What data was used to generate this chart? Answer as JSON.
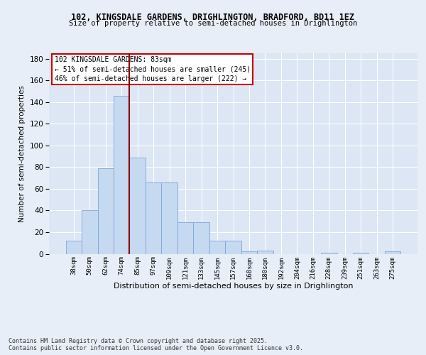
{
  "title1": "102, KINGSDALE GARDENS, DRIGHLINGTON, BRADFORD, BD11 1EZ",
  "title2": "Size of property relative to semi-detached houses in Drighlington",
  "xlabel": "Distribution of semi-detached houses by size in Drighlington",
  "ylabel": "Number of semi-detached properties",
  "categories": [
    "38sqm",
    "50sqm",
    "62sqm",
    "74sqm",
    "85sqm",
    "97sqm",
    "109sqm",
    "121sqm",
    "133sqm",
    "145sqm",
    "157sqm",
    "168sqm",
    "180sqm",
    "192sqm",
    "204sqm",
    "216sqm",
    "228sqm",
    "239sqm",
    "251sqm",
    "263sqm",
    "275sqm"
  ],
  "values": [
    12,
    40,
    79,
    146,
    89,
    66,
    66,
    29,
    29,
    12,
    12,
    2,
    3,
    0,
    0,
    0,
    1,
    0,
    1,
    0,
    2
  ],
  "bar_color": "#c5d9f1",
  "bar_edge_color": "#7ea6d3",
  "vline_color": "#8b0000",
  "annotation_text": "102 KINGSDALE GARDENS: 83sqm\n← 51% of semi-detached houses are smaller (245)\n46% of semi-detached houses are larger (222) →",
  "annotation_box_color": "#ffffff",
  "annotation_box_edge": "#cc0000",
  "ylim": [
    0,
    185
  ],
  "yticks": [
    0,
    20,
    40,
    60,
    80,
    100,
    120,
    140,
    160,
    180
  ],
  "footer": "Contains HM Land Registry data © Crown copyright and database right 2025.\nContains public sector information licensed under the Open Government Licence v3.0.",
  "bg_color": "#e8eef7",
  "plot_bg_color": "#dce6f4"
}
